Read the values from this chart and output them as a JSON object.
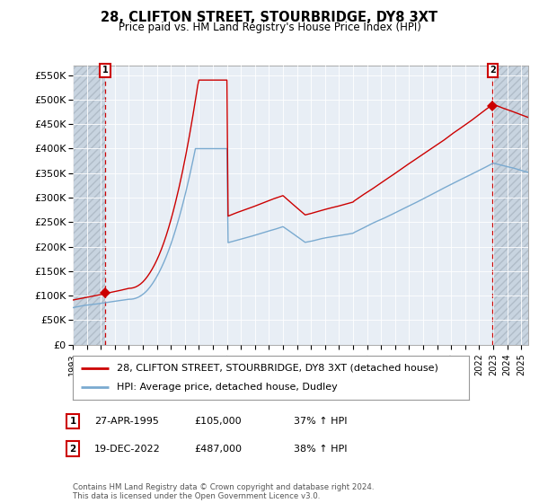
{
  "title": "28, CLIFTON STREET, STOURBRIDGE, DY8 3XT",
  "subtitle": "Price paid vs. HM Land Registry's House Price Index (HPI)",
  "legend_line1": "28, CLIFTON STREET, STOURBRIDGE, DY8 3XT (detached house)",
  "legend_line2": "HPI: Average price, detached house, Dudley",
  "annotation1_date": "27-APR-1995",
  "annotation1_price": "£105,000",
  "annotation1_hpi": "37% ↑ HPI",
  "annotation2_date": "19-DEC-2022",
  "annotation2_price": "£487,000",
  "annotation2_hpi": "38% ↑ HPI",
  "footer": "Contains HM Land Registry data © Crown copyright and database right 2024.\nThis data is licensed under the Open Government Licence v3.0.",
  "hpi_color": "#7aaad0",
  "price_color": "#cc0000",
  "marker_color": "#cc0000",
  "ylim": [
    0,
    570000
  ],
  "yticks": [
    0,
    50000,
    100000,
    150000,
    200000,
    250000,
    300000,
    350000,
    400000,
    450000,
    500000,
    550000
  ],
  "ytick_labels": [
    "£0",
    "£50K",
    "£100K",
    "£150K",
    "£200K",
    "£250K",
    "£300K",
    "£350K",
    "£400K",
    "£450K",
    "£500K",
    "£550K"
  ],
  "sale1_x": 1995.3,
  "sale1_y": 105000,
  "sale2_x": 2022.96,
  "sale2_y": 487000,
  "xlim_left": 1993.0,
  "xlim_right": 2025.5,
  "bg_color": "#ffffff",
  "plot_bg_color": "#e8eef5",
  "grid_color": "#ffffff",
  "hatch_left_end": 1995.3,
  "hatch_right_start": 2022.96
}
